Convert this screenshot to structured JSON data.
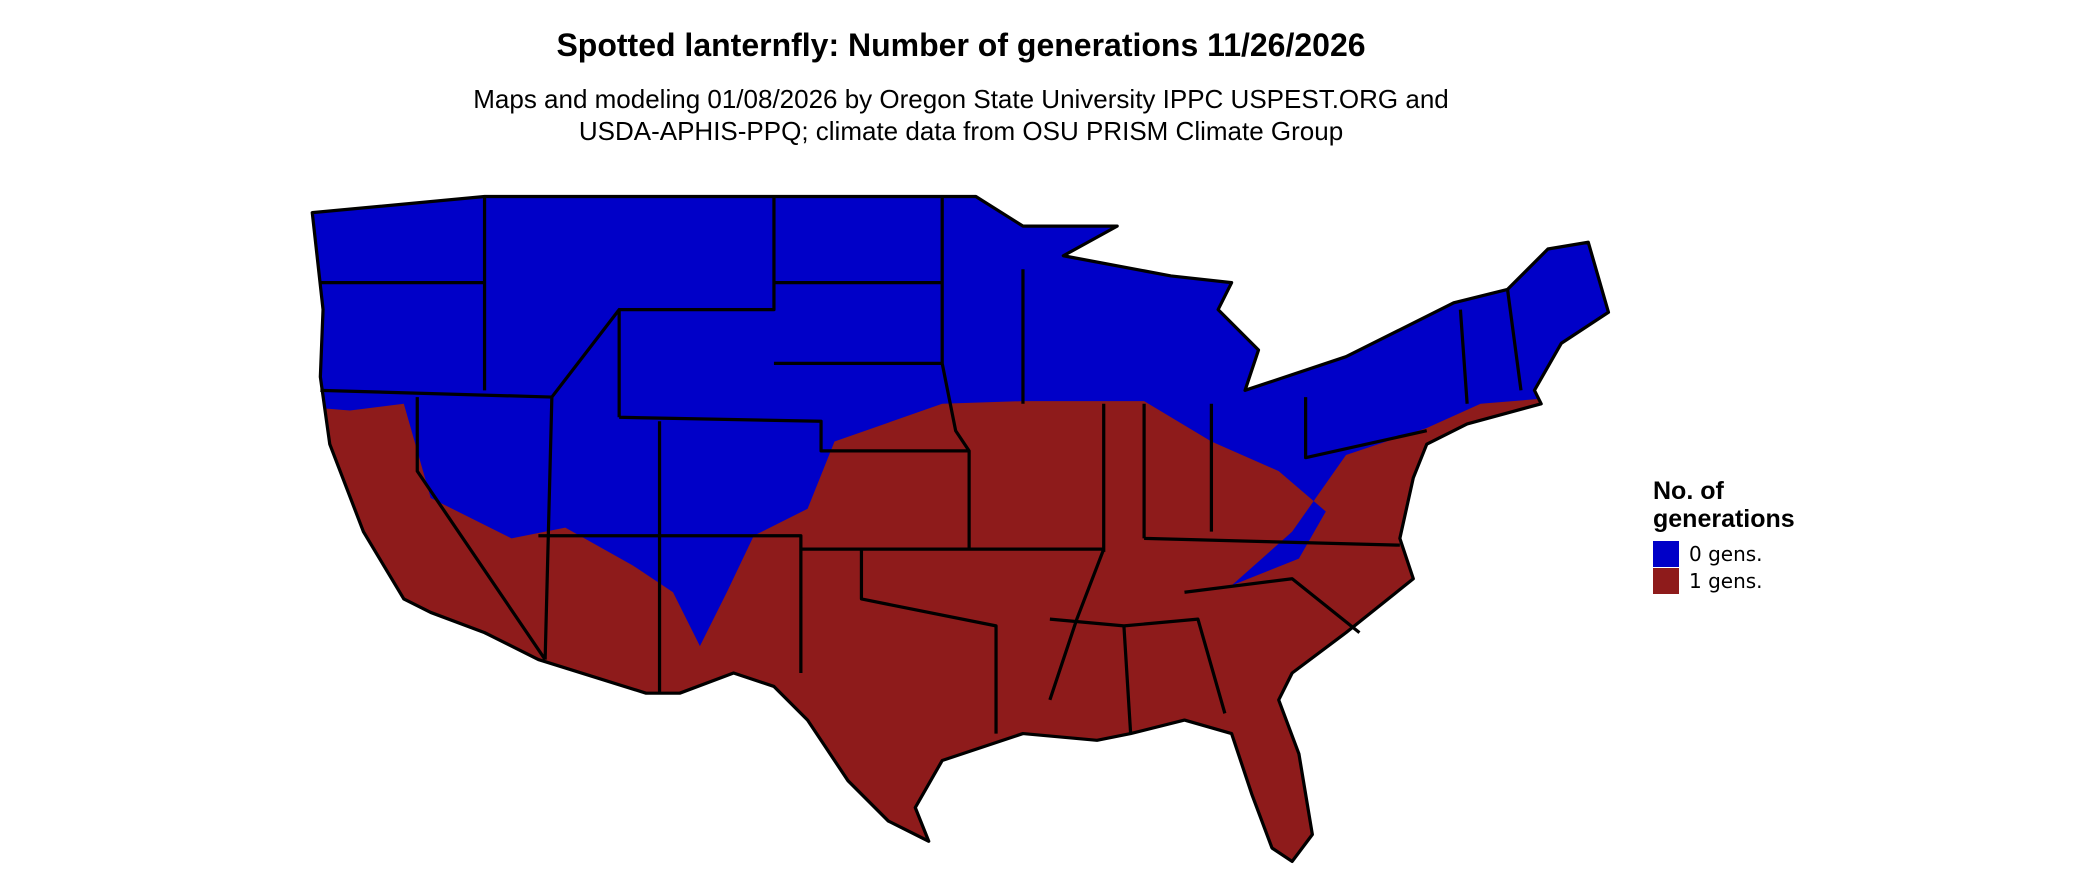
{
  "header": {
    "title": "Spotted lanternfly: Number of generations 11/26/2026",
    "subtitle": [
      "Maps and modeling 01/08/2026 by Oregon State University IPPC USPEST.ORG and",
      "USDA-APHIS-PPQ; climate data from OSU PRISM Climate Group"
    ]
  },
  "legend": {
    "title": [
      "No. of",
      "generations"
    ],
    "items": [
      {
        "label": "0 gens.",
        "color": "#0000c8"
      },
      {
        "label": "1 gens.",
        "color": "#8e1b1b"
      }
    ]
  }
}
